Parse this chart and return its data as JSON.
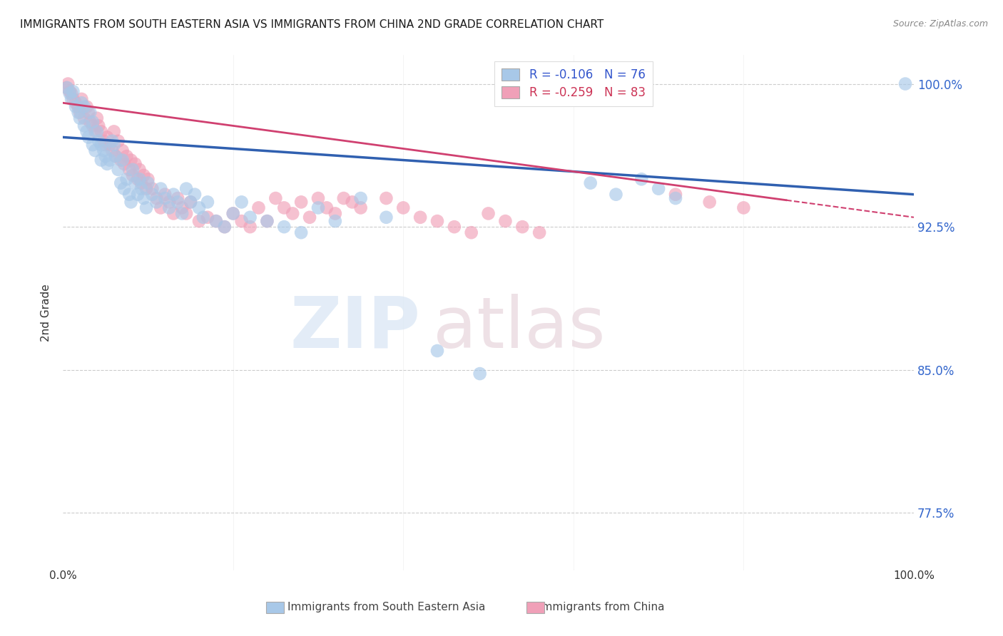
{
  "title": "IMMIGRANTS FROM SOUTH EASTERN ASIA VS IMMIGRANTS FROM CHINA 2ND GRADE CORRELATION CHART",
  "source": "Source: ZipAtlas.com",
  "ylabel": "2nd Grade",
  "ytick_labels": [
    "77.5%",
    "85.0%",
    "92.5%",
    "100.0%"
  ],
  "ytick_values": [
    0.775,
    0.85,
    0.925,
    1.0
  ],
  "xlim": [
    0.0,
    1.0
  ],
  "ylim": [
    0.745,
    1.015
  ],
  "legend_blue_label": "R = -0.106   N = 76",
  "legend_pink_label": "R = -0.259   N = 83",
  "color_blue": "#A8C8E8",
  "color_pink": "#F0A0B8",
  "line_color_blue": "#3060B0",
  "line_color_pink": "#D04070",
  "blue_line_y_start": 0.972,
  "blue_line_y_end": 0.942,
  "pink_line_y_start": 0.99,
  "pink_line_y_end": 0.93,
  "pink_line_solid_end_x": 0.85,
  "blue_scatter_x": [
    0.005,
    0.008,
    0.01,
    0.012,
    0.015,
    0.018,
    0.02,
    0.022,
    0.025,
    0.025,
    0.028,
    0.03,
    0.032,
    0.035,
    0.035,
    0.038,
    0.04,
    0.042,
    0.045,
    0.045,
    0.048,
    0.05,
    0.052,
    0.055,
    0.058,
    0.06,
    0.062,
    0.065,
    0.068,
    0.07,
    0.072,
    0.075,
    0.078,
    0.08,
    0.082,
    0.085,
    0.088,
    0.09,
    0.092,
    0.095,
    0.098,
    0.1,
    0.105,
    0.11,
    0.115,
    0.12,
    0.125,
    0.13,
    0.135,
    0.14,
    0.145,
    0.15,
    0.155,
    0.16,
    0.165,
    0.17,
    0.18,
    0.19,
    0.2,
    0.21,
    0.22,
    0.24,
    0.26,
    0.28,
    0.3,
    0.32,
    0.35,
    0.38,
    0.62,
    0.65,
    0.68,
    0.7,
    0.72,
    0.44,
    0.49,
    0.99
  ],
  "blue_scatter_y": [
    0.998,
    0.995,
    0.992,
    0.996,
    0.988,
    0.985,
    0.982,
    0.99,
    0.988,
    0.978,
    0.975,
    0.972,
    0.985,
    0.98,
    0.968,
    0.965,
    0.975,
    0.97,
    0.968,
    0.96,
    0.965,
    0.962,
    0.958,
    0.96,
    0.97,
    0.968,
    0.962,
    0.955,
    0.948,
    0.96,
    0.945,
    0.95,
    0.942,
    0.938,
    0.955,
    0.948,
    0.942,
    0.95,
    0.945,
    0.94,
    0.935,
    0.948,
    0.942,
    0.938,
    0.945,
    0.94,
    0.935,
    0.942,
    0.938,
    0.932,
    0.945,
    0.938,
    0.942,
    0.935,
    0.93,
    0.938,
    0.928,
    0.925,
    0.932,
    0.938,
    0.93,
    0.928,
    0.925,
    0.922,
    0.935,
    0.928,
    0.94,
    0.93,
    0.948,
    0.942,
    0.95,
    0.945,
    0.94,
    0.86,
    0.848,
    1.0
  ],
  "pink_scatter_x": [
    0.004,
    0.006,
    0.008,
    0.01,
    0.012,
    0.015,
    0.018,
    0.02,
    0.022,
    0.025,
    0.028,
    0.03,
    0.032,
    0.035,
    0.038,
    0.04,
    0.042,
    0.045,
    0.048,
    0.05,
    0.052,
    0.055,
    0.058,
    0.06,
    0.062,
    0.065,
    0.068,
    0.07,
    0.072,
    0.075,
    0.078,
    0.08,
    0.082,
    0.085,
    0.088,
    0.09,
    0.092,
    0.095,
    0.098,
    0.1,
    0.105,
    0.11,
    0.115,
    0.12,
    0.125,
    0.13,
    0.135,
    0.14,
    0.145,
    0.15,
    0.16,
    0.17,
    0.18,
    0.19,
    0.2,
    0.21,
    0.22,
    0.23,
    0.24,
    0.25,
    0.26,
    0.27,
    0.28,
    0.29,
    0.3,
    0.31,
    0.32,
    0.33,
    0.34,
    0.35,
    0.44,
    0.46,
    0.48,
    0.5,
    0.52,
    0.54,
    0.56,
    0.72,
    0.76,
    0.8,
    0.38,
    0.4,
    0.42
  ],
  "pink_scatter_y": [
    0.998,
    1.0,
    0.996,
    0.995,
    0.992,
    0.99,
    0.988,
    0.985,
    0.992,
    0.982,
    0.988,
    0.985,
    0.98,
    0.978,
    0.975,
    0.982,
    0.978,
    0.975,
    0.97,
    0.968,
    0.972,
    0.968,
    0.965,
    0.975,
    0.962,
    0.97,
    0.96,
    0.965,
    0.958,
    0.962,
    0.955,
    0.96,
    0.952,
    0.958,
    0.95,
    0.955,
    0.948,
    0.952,
    0.945,
    0.95,
    0.945,
    0.94,
    0.935,
    0.942,
    0.938,
    0.932,
    0.94,
    0.935,
    0.932,
    0.938,
    0.928,
    0.93,
    0.928,
    0.925,
    0.932,
    0.928,
    0.925,
    0.935,
    0.928,
    0.94,
    0.935,
    0.932,
    0.938,
    0.93,
    0.94,
    0.935,
    0.932,
    0.94,
    0.938,
    0.935,
    0.928,
    0.925,
    0.922,
    0.932,
    0.928,
    0.925,
    0.922,
    0.942,
    0.938,
    0.935,
    0.94,
    0.935,
    0.93
  ]
}
